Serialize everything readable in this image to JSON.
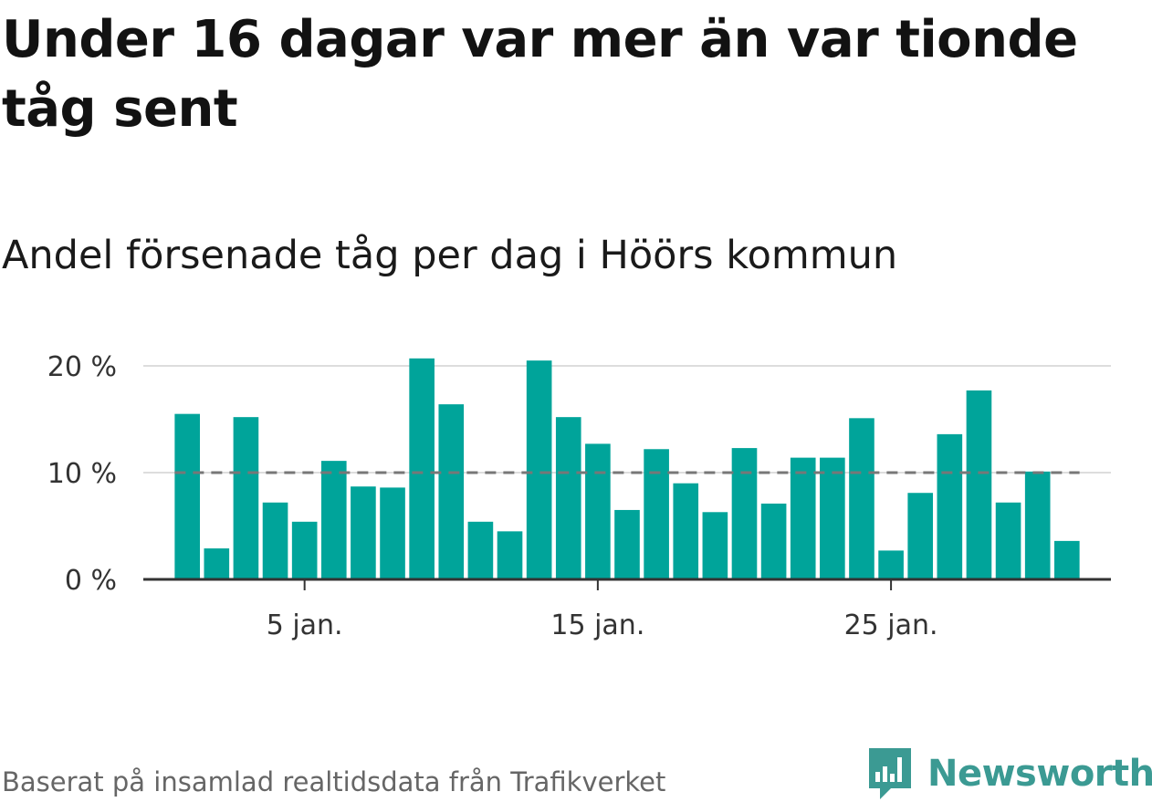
{
  "title": "Under 16 dagar var mer än var tionde tåg sent",
  "subtitle": "Andel försenade tåg per dag i Höörs kommun",
  "source": "Baserat på insamlad realtidsdata från Trafikverket",
  "logo_text": "Newsworthy",
  "colors": {
    "bar": "#00a49a",
    "reference_line": "#777777",
    "grid": "#dddddd",
    "axis": "#333333",
    "logo": "#3b9a93"
  },
  "chart_data": {
    "type": "bar",
    "x": [
      1,
      2,
      3,
      4,
      5,
      6,
      7,
      8,
      9,
      10,
      11,
      12,
      13,
      14,
      15,
      16,
      17,
      18,
      19,
      20,
      21,
      22,
      23,
      24,
      25,
      26,
      27,
      28,
      29,
      30,
      31
    ],
    "values": [
      15.5,
      2.9,
      15.2,
      7.2,
      5.4,
      11.1,
      8.7,
      8.6,
      20.7,
      16.4,
      5.4,
      4.5,
      20.5,
      15.2,
      12.7,
      6.5,
      12.2,
      9.0,
      6.3,
      12.3,
      7.1,
      11.4,
      11.4,
      15.1,
      2.7,
      8.1,
      13.6,
      17.7,
      7.2,
      10.1,
      3.6
    ],
    "yticks": [
      0,
      10,
      20
    ],
    "ytick_labels": [
      "0 %",
      "10 %",
      "20 %"
    ],
    "xticks": [
      5,
      15,
      25
    ],
    "xtick_labels": [
      "5 jan.",
      "15 jan.",
      "25 jan."
    ],
    "reference_line": 10,
    "ylim": [
      0,
      20
    ],
    "xlim": [
      -0.5,
      32.5
    ],
    "grid": true
  }
}
